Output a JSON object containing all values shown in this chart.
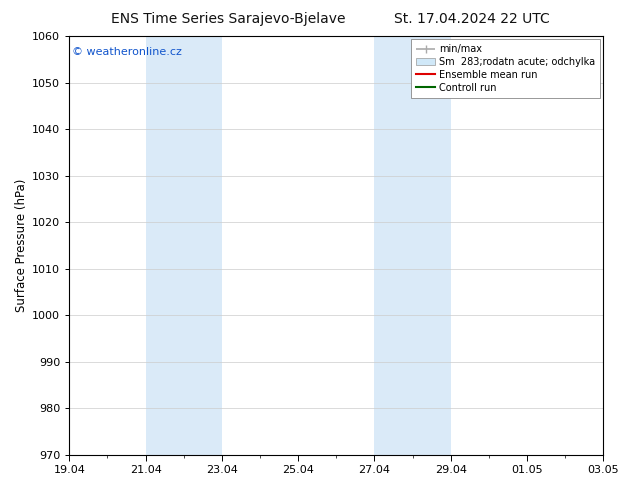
{
  "title": "ENS Time Series Sarajevo-Bjelave",
  "title_right": "St. 17.04.2024 22 UTC",
  "ylabel": "Surface Pressure (hPa)",
  "watermark": "© weatheronline.cz",
  "watermark_color": "#1155cc",
  "ylim": [
    970,
    1060
  ],
  "yticks": [
    970,
    980,
    990,
    1000,
    1010,
    1020,
    1030,
    1040,
    1050,
    1060
  ],
  "xtick_labels": [
    "19.04",
    "21.04",
    "23.04",
    "25.04",
    "27.04",
    "29.04",
    "01.05",
    "03.05"
  ],
  "xtick_positions": [
    0,
    2,
    4,
    6,
    8,
    10,
    12,
    14
  ],
  "total_days": 14,
  "shaded_regions": [
    {
      "start": 2,
      "end": 4
    },
    {
      "start": 8,
      "end": 10
    }
  ],
  "shaded_color": "#daeaf8",
  "legend_labels": [
    "min/max",
    "Sm  283;rodatn acute; odchylka",
    "Ensemble mean run",
    "Controll run"
  ],
  "minmax_color": "#aaaaaa",
  "sm_color": "#d0e8f8",
  "ensemble_color": "#dd0000",
  "control_color": "#006600",
  "background_color": "#ffffff",
  "title_fontsize": 10,
  "ylabel_fontsize": 8.5,
  "tick_fontsize": 8,
  "legend_fontsize": 7,
  "watermark_fontsize": 8
}
